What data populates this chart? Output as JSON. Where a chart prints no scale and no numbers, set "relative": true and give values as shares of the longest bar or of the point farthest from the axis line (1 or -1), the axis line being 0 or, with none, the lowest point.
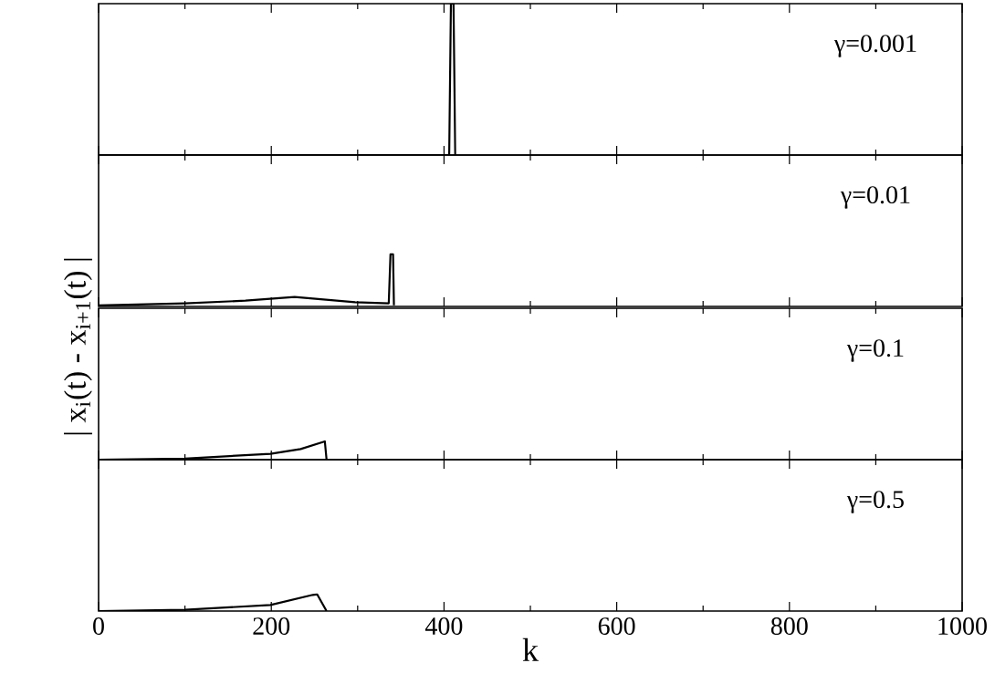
{
  "chart_data": [
    {
      "type": "line",
      "relative": true,
      "x": [
        0,
        406,
        408,
        411,
        413
      ],
      "values": [
        0,
        0,
        1,
        1,
        0
      ],
      "color": "#000000",
      "xlim": [
        0,
        1000
      ],
      "xticks": [
        0,
        200,
        400,
        600,
        800,
        1000
      ],
      "tick_labels": false,
      "annotations": [
        "γ=0.001"
      ]
    },
    {
      "type": "line",
      "relative": true,
      "x": [
        0,
        100,
        170,
        227,
        297,
        336,
        338,
        341,
        342
      ],
      "values": [
        0.02,
        0.06,
        0.11,
        0.18,
        0.08,
        0.06,
        1,
        1,
        0.02
      ],
      "color": "#000000",
      "xlim": [
        0,
        1000
      ],
      "xticks": [
        0,
        200,
        400,
        600,
        800,
        1000
      ],
      "tick_labels": false,
      "ylabel": "| x$_{i}$(t) - x$_{i+1}$(t) |",
      "annotations": [
        "γ=0.01"
      ]
    },
    {
      "type": "line",
      "relative": true,
      "x": [
        0,
        100,
        199,
        234,
        262,
        264
      ],
      "values": [
        0,
        0.06,
        0.32,
        0.58,
        1,
        0
      ],
      "color": "#000000",
      "xlim": [
        0,
        1000
      ],
      "xticks": [
        0,
        200,
        400,
        600,
        800,
        1000
      ],
      "tick_labels": false,
      "annotations": [
        "γ=0.1"
      ]
    },
    {
      "type": "line",
      "relative": true,
      "x": [
        0,
        100,
        199,
        248,
        253,
        264
      ],
      "values": [
        0,
        0.07,
        0.36,
        0.96,
        1,
        0
      ],
      "color": "#000000",
      "xlim": [
        0,
        1000
      ],
      "xticks": [
        0,
        200,
        400,
        600,
        800,
        1000
      ],
      "tick_labels": "x",
      "xlabel": "k",
      "annotations": [
        "γ=0.5"
      ]
    }
  ]
}
